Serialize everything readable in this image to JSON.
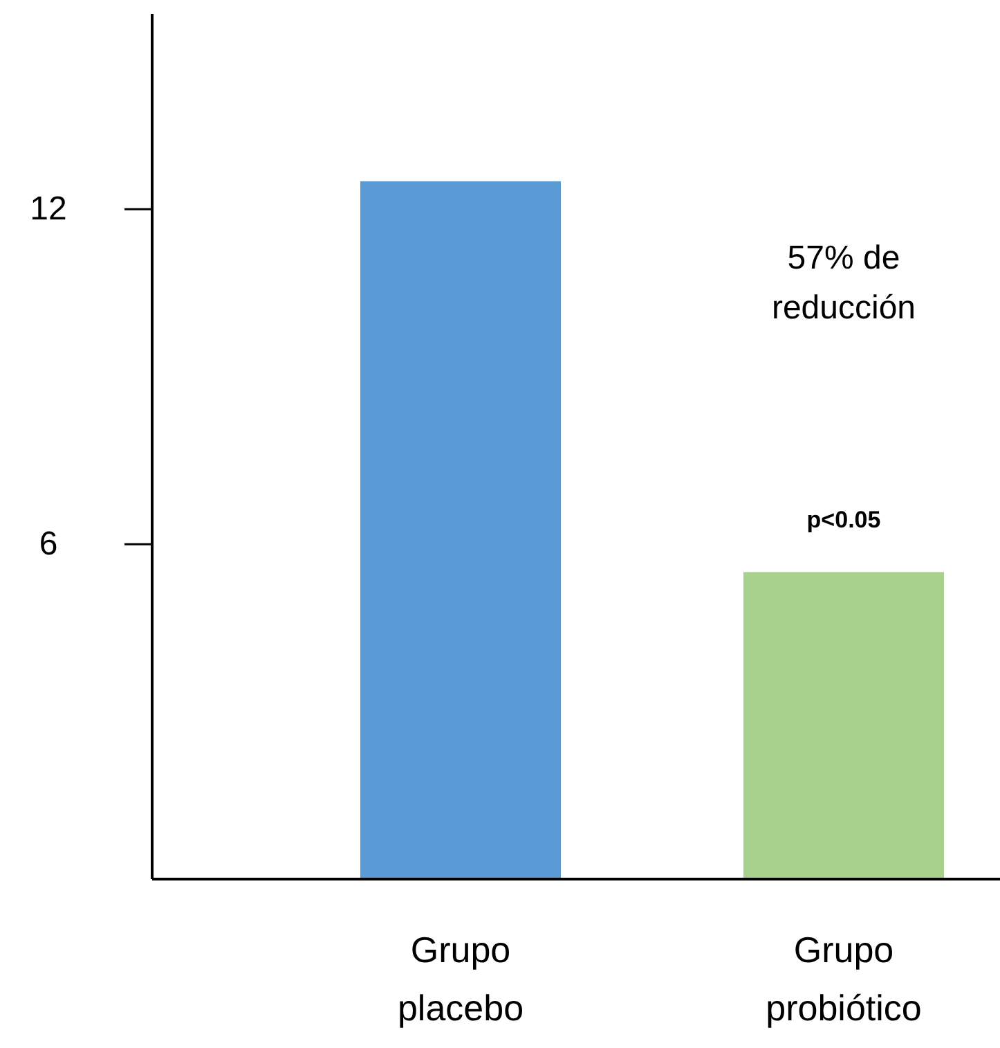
{
  "chart_data": {
    "type": "bar",
    "categories": [
      "Grupo placebo",
      "Grupo probiótico"
    ],
    "values": [
      12.5,
      5.5
    ],
    "colors": [
      "#5b9bd5",
      "#a9d18e"
    ],
    "ylim": [
      0,
      15.5
    ],
    "yticks": [
      6,
      12
    ],
    "annotations": [
      "57% de\nreducción",
      "p<0.05"
    ]
  }
}
